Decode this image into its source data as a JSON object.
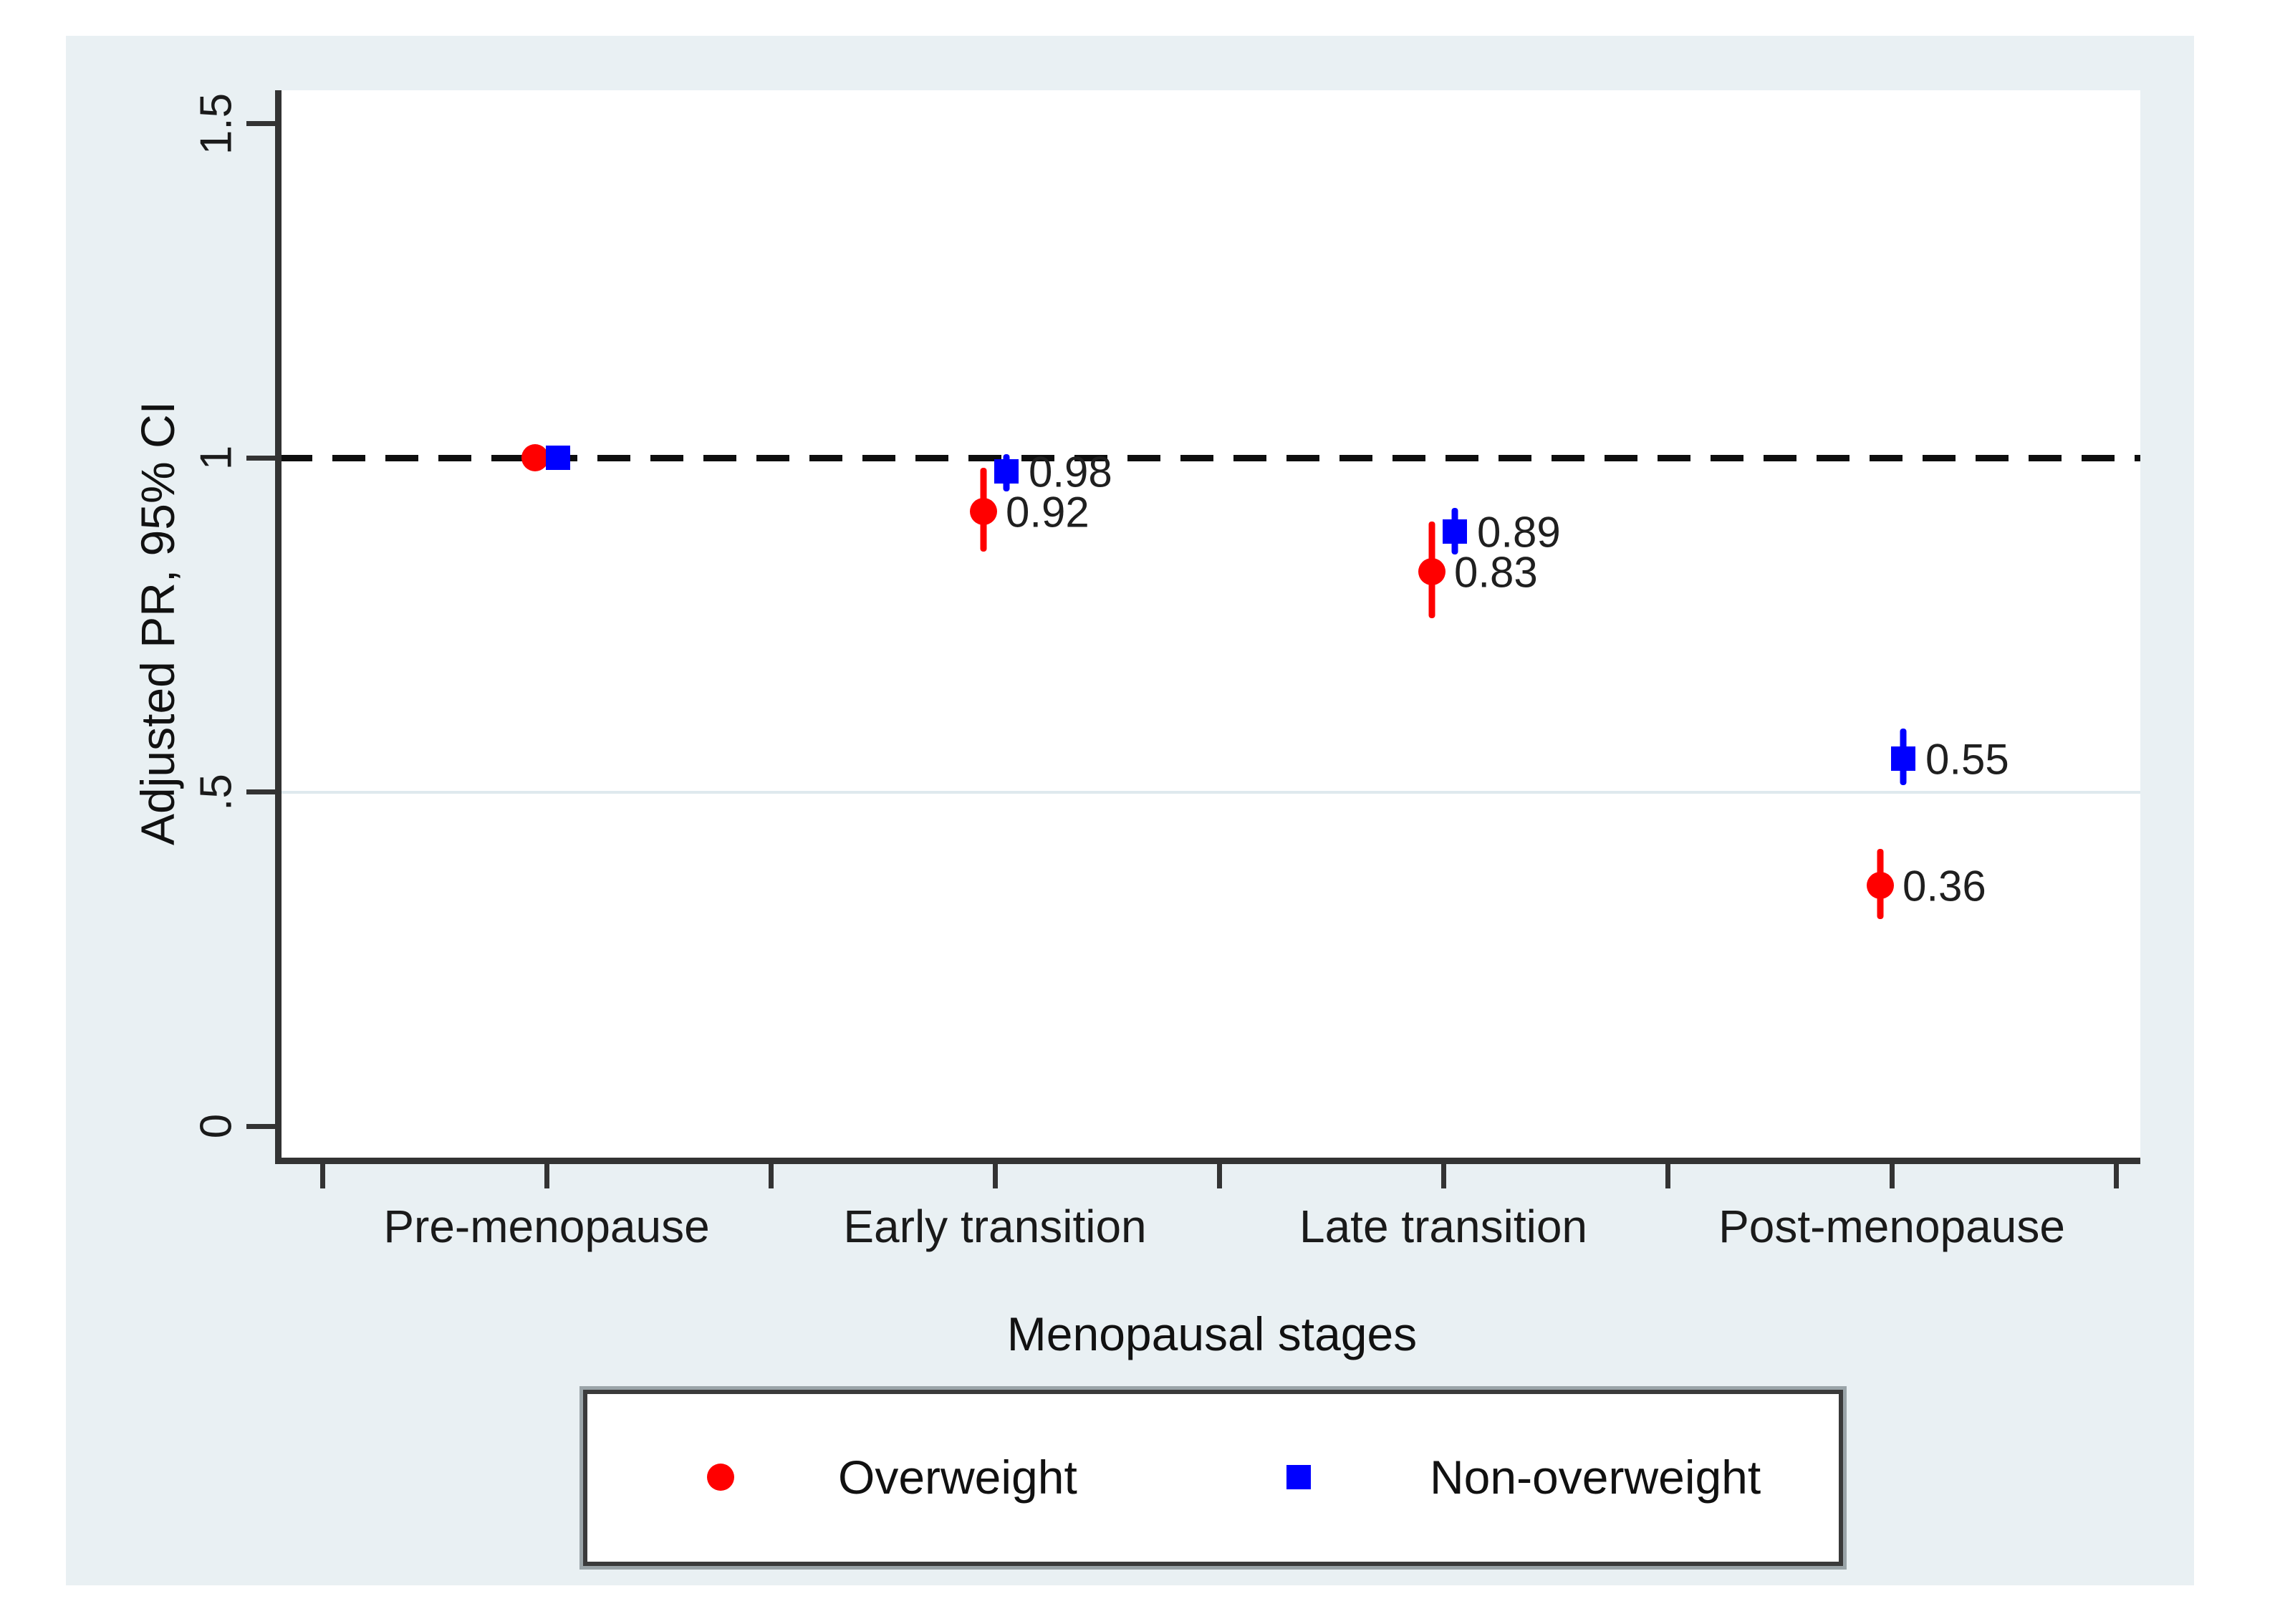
{
  "figure": {
    "page_bg": "#ffffff",
    "canvas_bg": "#e9f0f3",
    "plot_bg": "#ffffff",
    "axis_color": "#333333",
    "text_color": "#1a1a1a"
  },
  "chart_data": {
    "type": "scatter",
    "title": "",
    "xlabel": "Menopausal stages",
    "ylabel": "Adjusted PR, 95% CI",
    "categories": [
      "Pre-menopause",
      "Early transition",
      "Late transition",
      "Post-menopause"
    ],
    "y_axis": {
      "ticks": [
        {
          "value": 1.5,
          "label": "1.5"
        },
        {
          "value": 1.0,
          "label": "1"
        },
        {
          "value": 0.5,
          "label": ".5"
        },
        {
          "value": 0.0,
          "label": "0"
        }
      ],
      "range": [
        -0.05,
        1.6
      ],
      "tick_labels_rotated": true
    },
    "reference_line": {
      "value": 1.0,
      "style": "dashed",
      "color": "#0e0e0e"
    },
    "minor_gridline": {
      "value": 0.5,
      "color": "#dfe9ee"
    },
    "grid": "off",
    "legend_position": "bottom",
    "series": [
      {
        "name": "Overweight",
        "marker": "circle",
        "color": "#ff0000",
        "points": [
          {
            "category": "Pre-menopause",
            "value": 1.0,
            "ci_low": null,
            "ci_high": null,
            "label": ""
          },
          {
            "category": "Early transition",
            "value": 0.92,
            "ci_low": 0.86,
            "ci_high": 0.985,
            "label": "0.92"
          },
          {
            "category": "Late transition",
            "value": 0.83,
            "ci_low": 0.76,
            "ci_high": 0.905,
            "label": "0.83"
          },
          {
            "category": "Post-menopause",
            "value": 0.36,
            "ci_low": 0.31,
            "ci_high": 0.415,
            "label": "0.36"
          }
        ]
      },
      {
        "name": "Non-overweight",
        "marker": "square",
        "color": "#0000ff",
        "points": [
          {
            "category": "Pre-menopause",
            "value": 1.0,
            "ci_low": null,
            "ci_high": null,
            "label": ""
          },
          {
            "category": "Early transition",
            "value": 0.98,
            "ci_low": 0.95,
            "ci_high": 1.005,
            "label": "0.98"
          },
          {
            "category": "Late transition",
            "value": 0.89,
            "ci_low": 0.855,
            "ci_high": 0.925,
            "label": "0.89"
          },
          {
            "category": "Post-menopause",
            "value": 0.55,
            "ci_low": 0.51,
            "ci_high": 0.595,
            "label": "0.55"
          }
        ]
      }
    ]
  }
}
